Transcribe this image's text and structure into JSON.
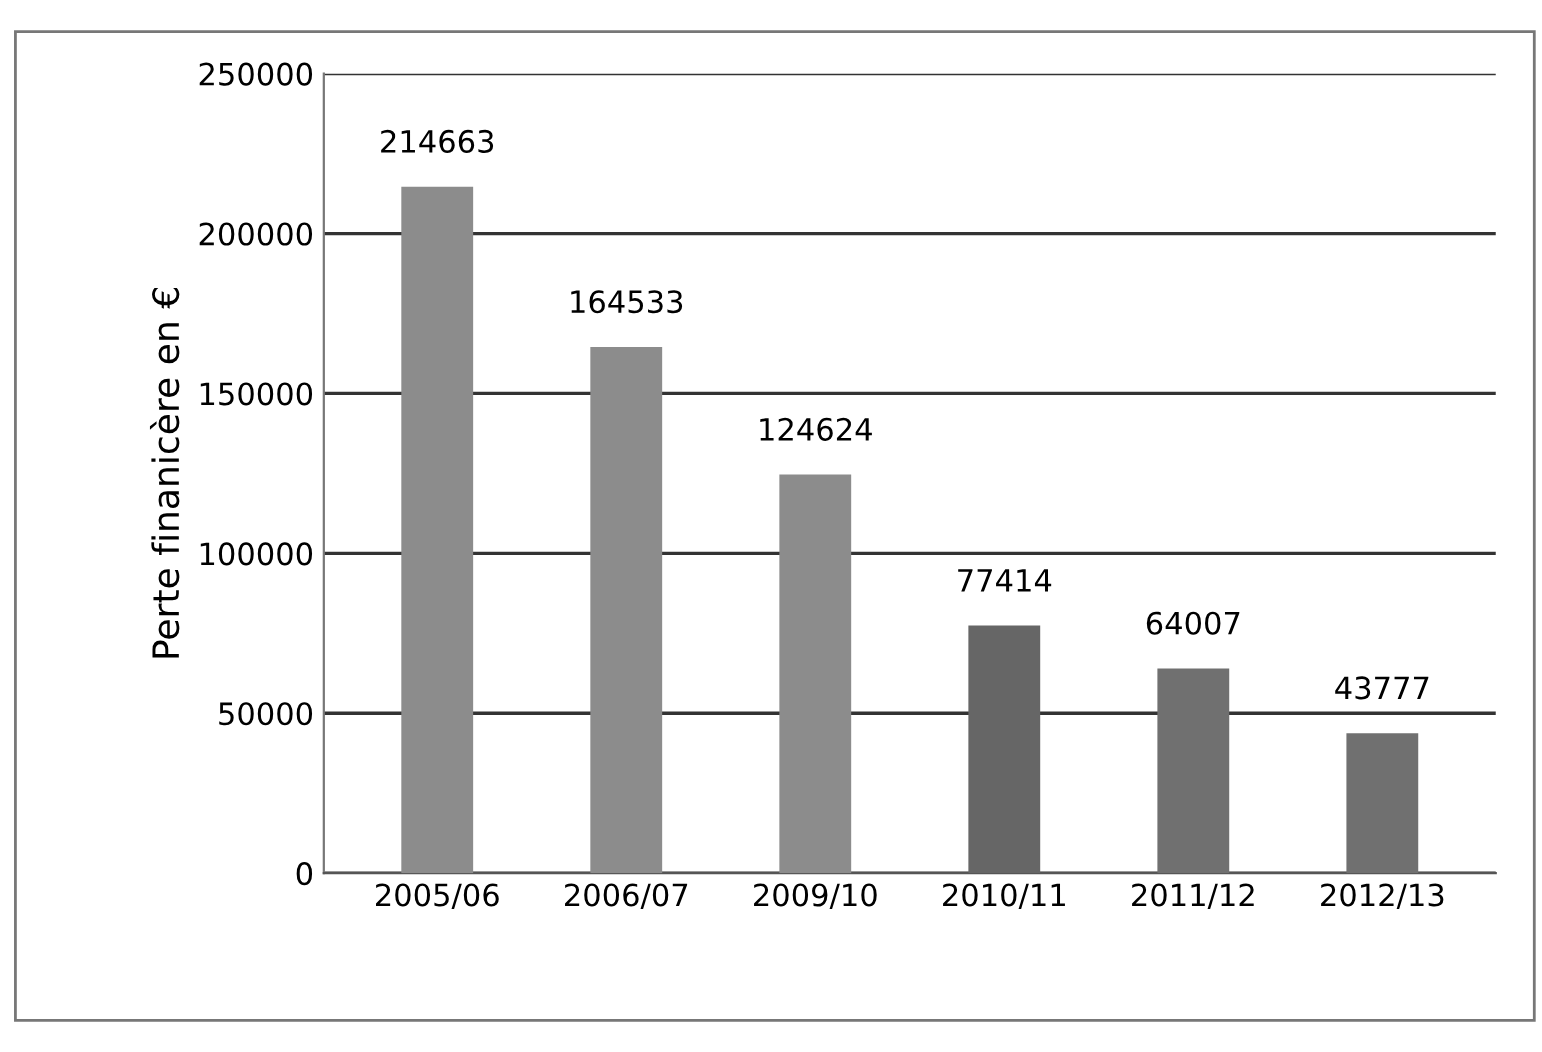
{
  "chart_data": {
    "type": "bar",
    "ylabel": "Perte finanicère en €",
    "categories": [
      "2005/06",
      "2006/07",
      "2009/10",
      "2010/11",
      "2011/12",
      "2012/13"
    ],
    "values": [
      214663,
      164533,
      124624,
      77414,
      64007,
      43777
    ],
    "colors": [
      "#8c8c8c",
      "#8c8c8c",
      "#8c8c8c",
      "#666666",
      "#707070",
      "#707070"
    ],
    "ylim": [
      0,
      250000
    ],
    "yticks": [
      0,
      50000,
      100000,
      150000,
      200000,
      250000
    ],
    "grid": "y",
    "data_labels": true
  }
}
